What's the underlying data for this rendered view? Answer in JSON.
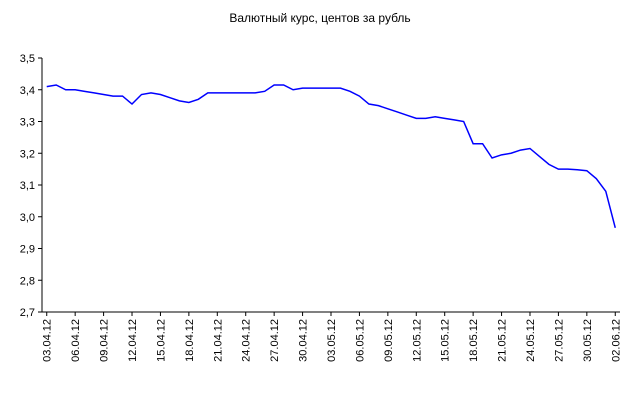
{
  "chart_data": {
    "type": "line",
    "title": "Валютный курс, центов за рубль",
    "categories": [
      "03.04.12",
      null,
      null,
      "06.04.12",
      null,
      null,
      "09.04.12",
      null,
      null,
      "12.04.12",
      null,
      null,
      "15.04.12",
      null,
      null,
      "18.04.12",
      null,
      null,
      "21.04.12",
      null,
      null,
      "24.04.12",
      null,
      null,
      "27.04.12",
      null,
      null,
      "30.04.12",
      null,
      null,
      "03.05.12",
      null,
      null,
      "06.05.12",
      null,
      null,
      "09.05.12",
      null,
      null,
      "12.05.12",
      null,
      null,
      "15.05.12",
      null,
      null,
      "18.05.12",
      null,
      null,
      "21.05.12",
      null,
      null,
      "24.05.12",
      null,
      null,
      "27.05.12",
      null,
      null,
      "30.05.12",
      null,
      null,
      "02.06.12"
    ],
    "series": [
      {
        "color": "#0000ff",
        "values": [
          3.41,
          3.415,
          3.4,
          3.4,
          3.395,
          3.39,
          3.385,
          3.38,
          3.38,
          3.355,
          3.385,
          3.39,
          3.385,
          3.375,
          3.365,
          3.36,
          3.37,
          3.39,
          3.39,
          3.39,
          3.39,
          3.39,
          3.39,
          3.395,
          3.415,
          3.415,
          3.4,
          3.405,
          3.405,
          3.405,
          3.405,
          3.405,
          3.395,
          3.38,
          3.355,
          3.35,
          3.34,
          3.33,
          3.32,
          3.31,
          3.31,
          3.315,
          3.31,
          3.305,
          3.3,
          3.23,
          3.23,
          3.185,
          3.195,
          3.2,
          3.21,
          3.215,
          3.19,
          3.165,
          3.15,
          3.15,
          3.148,
          3.145,
          3.12,
          3.08,
          2.965
        ]
      }
    ],
    "ylim": [
      2.7,
      3.5
    ],
    "yticks": [
      {
        "value": 2.7,
        "label": "2,7"
      },
      {
        "value": 2.8,
        "label": "2,8"
      },
      {
        "value": 2.9,
        "label": "2,9"
      },
      {
        "value": 3.0,
        "label": "3,0"
      },
      {
        "value": 3.1,
        "label": "3,1"
      },
      {
        "value": 3.2,
        "label": "3,2"
      },
      {
        "value": 3.3,
        "label": "3,3"
      },
      {
        "value": 3.4,
        "label": "3,4"
      },
      {
        "value": 3.5,
        "label": "3,5"
      }
    ],
    "grid": false
  }
}
